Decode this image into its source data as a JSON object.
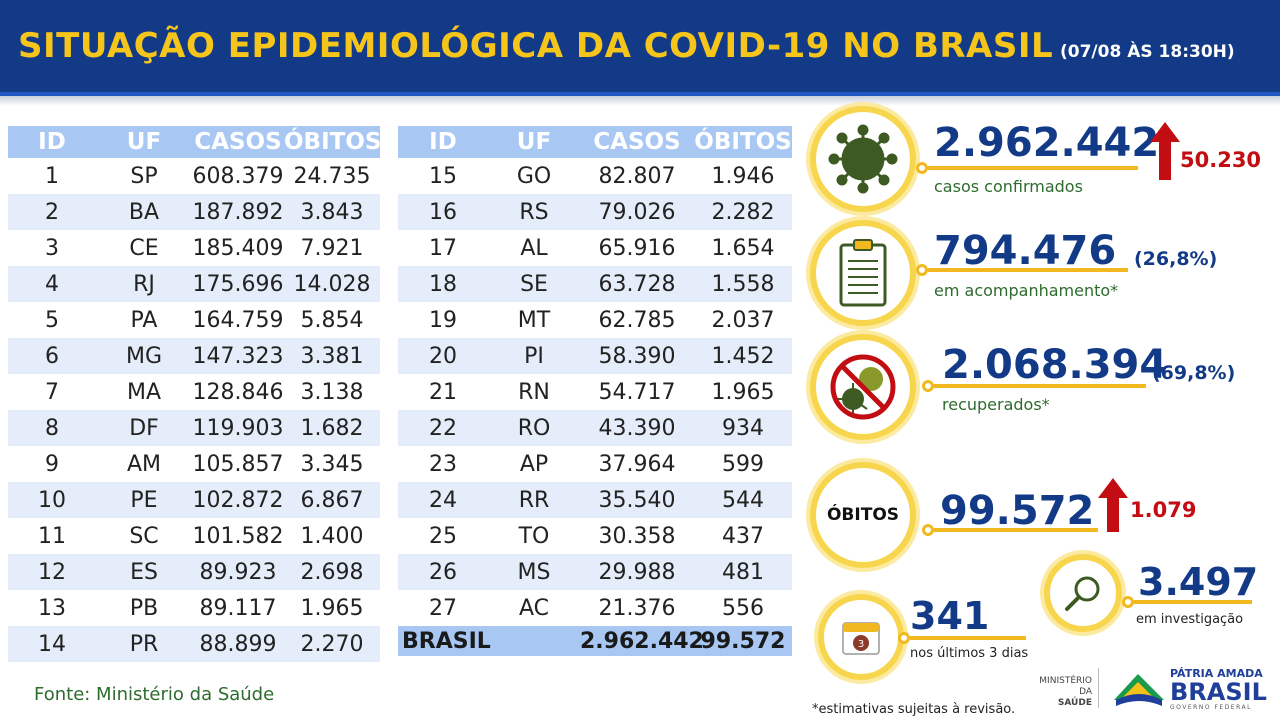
{
  "header": {
    "title": "SITUAÇÃO EPIDEMIOLÓGICA DA COVID-19 NO BRASIL",
    "date": "(07/08 ÀS 18:30H)"
  },
  "table_headers": {
    "id": "ID",
    "uf": "UF",
    "cases": "CASOS",
    "deaths": "ÓBITOS"
  },
  "states_left": [
    {
      "id": "1",
      "uf": "SP",
      "cases": "608.379",
      "deaths": "24.735"
    },
    {
      "id": "2",
      "uf": "BA",
      "cases": "187.892",
      "deaths": "3.843"
    },
    {
      "id": "3",
      "uf": "CE",
      "cases": "185.409",
      "deaths": "7.921"
    },
    {
      "id": "4",
      "uf": "RJ",
      "cases": "175.696",
      "deaths": "14.028"
    },
    {
      "id": "5",
      "uf": "PA",
      "cases": "164.759",
      "deaths": "5.854"
    },
    {
      "id": "6",
      "uf": "MG",
      "cases": "147.323",
      "deaths": "3.381"
    },
    {
      "id": "7",
      "uf": "MA",
      "cases": "128.846",
      "deaths": "3.138"
    },
    {
      "id": "8",
      "uf": "DF",
      "cases": "119.903",
      "deaths": "1.682"
    },
    {
      "id": "9",
      "uf": "AM",
      "cases": "105.857",
      "deaths": "3.345"
    },
    {
      "id": "10",
      "uf": "PE",
      "cases": "102.872",
      "deaths": "6.867"
    },
    {
      "id": "11",
      "uf": "SC",
      "cases": "101.582",
      "deaths": "1.400"
    },
    {
      "id": "12",
      "uf": "ES",
      "cases": "89.923",
      "deaths": "2.698"
    },
    {
      "id": "13",
      "uf": "PB",
      "cases": "89.117",
      "deaths": "1.965"
    },
    {
      "id": "14",
      "uf": "PR",
      "cases": "88.899",
      "deaths": "2.270"
    }
  ],
  "states_right": [
    {
      "id": "15",
      "uf": "GO",
      "cases": "82.807",
      "deaths": "1.946"
    },
    {
      "id": "16",
      "uf": "RS",
      "cases": "79.026",
      "deaths": "2.282"
    },
    {
      "id": "17",
      "uf": "AL",
      "cases": "65.916",
      "deaths": "1.654"
    },
    {
      "id": "18",
      "uf": "SE",
      "cases": "63.728",
      "deaths": "1.558"
    },
    {
      "id": "19",
      "uf": "MT",
      "cases": "62.785",
      "deaths": "2.037"
    },
    {
      "id": "20",
      "uf": "PI",
      "cases": "58.390",
      "deaths": "1.452"
    },
    {
      "id": "21",
      "uf": "RN",
      "cases": "54.717",
      "deaths": "1.965"
    },
    {
      "id": "22",
      "uf": "RO",
      "cases": "43.390",
      "deaths": "934"
    },
    {
      "id": "23",
      "uf": "AP",
      "cases": "37.964",
      "deaths": "599"
    },
    {
      "id": "24",
      "uf": "RR",
      "cases": "35.540",
      "deaths": "544"
    },
    {
      "id": "25",
      "uf": "TO",
      "cases": "30.358",
      "deaths": "437"
    },
    {
      "id": "26",
      "uf": "MS",
      "cases": "29.988",
      "deaths": "481"
    },
    {
      "id": "27",
      "uf": "AC",
      "cases": "21.376",
      "deaths": "556"
    }
  ],
  "total": {
    "label": "BRASIL",
    "cases": "2.962.442",
    "deaths": "99.572"
  },
  "stats": {
    "confirmed": {
      "value": "2.962.442",
      "label": "casos confirmados",
      "increase": "50.230"
    },
    "monitoring": {
      "value": "794.476",
      "label": "em acompanhamento*",
      "pct": "(26,8%)"
    },
    "recovered": {
      "value": "2.068.394",
      "label": "recuperados*",
      "pct": "(69,8%)"
    },
    "deaths": {
      "badge": "ÓBITOS",
      "value": "99.572",
      "increase": "1.079"
    },
    "investigation": {
      "value": "3.497",
      "label": "em investigação"
    },
    "last3days": {
      "value": "341",
      "label": "nos últimos 3 dias",
      "calendar_day": "3"
    }
  },
  "footer": {
    "source": "Fonte: Ministério da Saúde",
    "note": "*estimativas sujeitas à revisão.",
    "ministry_line1": "MINISTÉRIO DA",
    "ministry_line2": "SAÚDE",
    "brand_top": "PÁTRIA AMADA",
    "brand_main": "BRASIL",
    "brand_sub": "GOVERNO FEDERAL"
  },
  "colors": {
    "header_bg": "#123a87",
    "title_yellow": "#f6c51b",
    "table_header": "#a8c8f3",
    "accent_yellow": "#f2b820",
    "virus_green": "#3e5a23",
    "alert_red": "#c20d12"
  }
}
